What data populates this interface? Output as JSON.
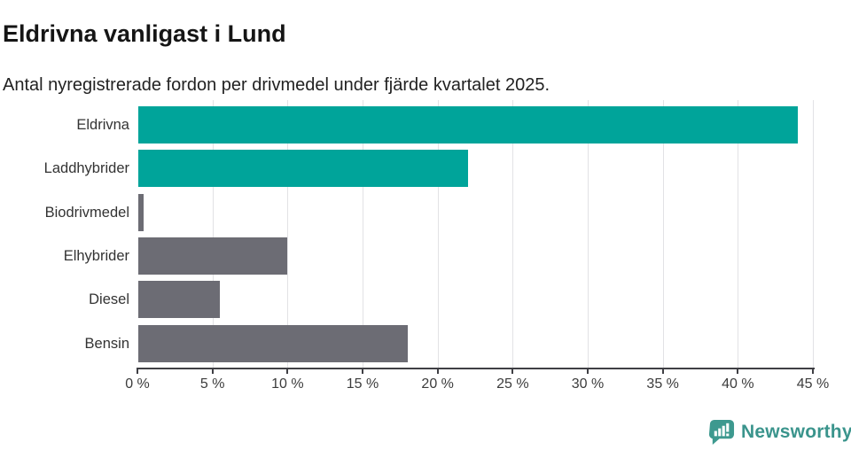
{
  "header": {
    "title": "Eldrivna vanligast i Lund",
    "subtitle": "Antal nyregistrerade fordon per drivmedel under fjärde kvartalet 2025."
  },
  "chart_data": {
    "type": "bar",
    "orientation": "horizontal",
    "title": "Eldrivna vanligast i Lund",
    "subtitle": "Antal nyregistrerade fordon per drivmedel under fjärde kvartalet 2025.",
    "categories": [
      "Eldrivna",
      "Laddhybrider",
      "Biodrivmedel",
      "Elhybrider",
      "Diesel",
      "Bensin"
    ],
    "values": [
      44,
      22,
      0.4,
      10,
      5.5,
      18
    ],
    "unit": "%",
    "xlim": [
      0,
      45
    ],
    "x_ticks": [
      0,
      5,
      10,
      15,
      20,
      25,
      30,
      35,
      40,
      45
    ],
    "x_tick_labels": [
      "0 %",
      "5 %",
      "10 %",
      "15 %",
      "20 %",
      "25 %",
      "30 %",
      "35 %",
      "40 %",
      "45 %"
    ],
    "grid": true,
    "legend": false,
    "bar_colors": [
      "#00a49a",
      "#00a49a",
      "#6c6c74",
      "#6c6c74",
      "#6c6c74",
      "#6c6c74"
    ]
  },
  "colors": {
    "accent_teal": "#00a49a",
    "neutral_gray": "#6c6c74",
    "gridline": "#e2e2e5",
    "axis": "#3f3f44",
    "brand_teal": "#3a948c"
  },
  "footer": {
    "brand_name": "Newsworthy",
    "logo_icon": "bar-chart-speech-bubble-icon"
  }
}
